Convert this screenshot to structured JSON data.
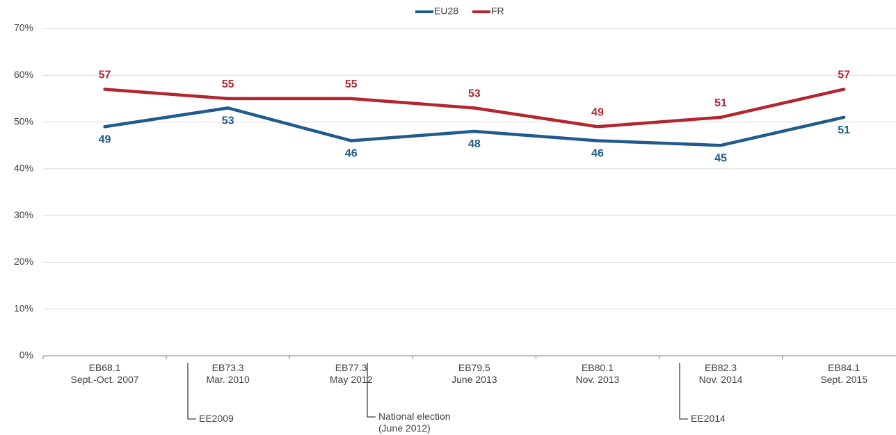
{
  "chart_data": {
    "type": "line",
    "categories": [
      [
        "EB68.1",
        "Sept.-Oct. 2007"
      ],
      [
        "EB73.3",
        "Mar. 2010"
      ],
      [
        "EB77.3",
        "May 2012"
      ],
      [
        "EB79.5",
        "June 2013"
      ],
      [
        "EB80.1",
        "Nov. 2013"
      ],
      [
        "EB82.3",
        "Nov. 2014"
      ],
      [
        "EB84.1",
        "Sept. 2015"
      ]
    ],
    "series": [
      {
        "name": "EU28",
        "color": "#215a8c",
        "values": [
          49,
          53,
          46,
          48,
          46,
          45,
          51
        ]
      },
      {
        "name": "FR",
        "color": "#b3262f",
        "values": [
          57,
          55,
          55,
          53,
          49,
          51,
          57
        ]
      }
    ],
    "ylim": [
      0,
      70
    ],
    "yticks": [
      {
        "value": 0,
        "label": "0%"
      },
      {
        "value": 10,
        "label": "10%"
      },
      {
        "value": 20,
        "label": "20%"
      },
      {
        "value": 30,
        "label": "30%"
      },
      {
        "value": 40,
        "label": "40%"
      },
      {
        "value": 50,
        "label": "50%"
      },
      {
        "value": 60,
        "label": "60%"
      },
      {
        "value": 70,
        "label": "70%"
      }
    ],
    "grid": true,
    "legend": "top",
    "annotations": [
      {
        "text": [
          "EE2009"
        ]
      },
      {
        "text": [
          "National election",
          "(June 2012)"
        ]
      },
      {
        "text": [
          "EE2014"
        ]
      }
    ]
  }
}
